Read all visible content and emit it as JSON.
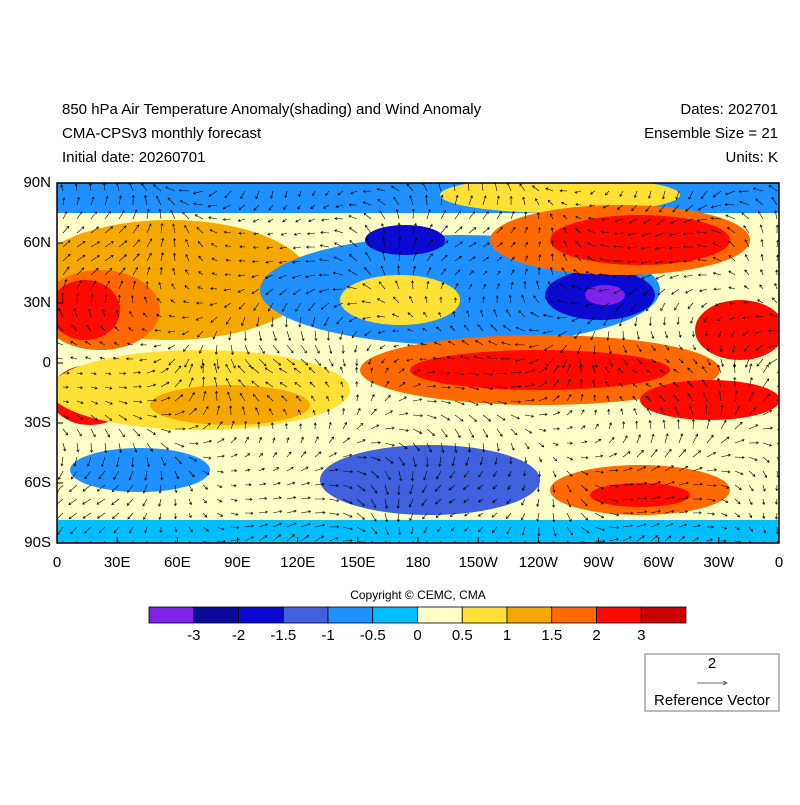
{
  "header": {
    "title": "850 hPa Air Temperature Anomaly(shading) and Wind Anomaly",
    "subtitle": "CMA-CPSv3 monthly forecast",
    "initial_date": "Initial date: 20260701",
    "dates": "Dates: 202701",
    "ensemble": "Ensemble Size = 21",
    "units": "Units: K"
  },
  "map": {
    "lat_labels": [
      "90N",
      "60N",
      "30N",
      "0",
      "30S",
      "60S",
      "90S"
    ],
    "lon_labels": [
      "0",
      "30E",
      "60E",
      "90E",
      "120E",
      "150E",
      "180",
      "150W",
      "120W",
      "90W",
      "60W",
      "30W",
      "0"
    ]
  },
  "copyright": "Copyright © CEMC, CMA",
  "colorbar": {
    "colors": [
      "#7d22e8",
      "#0a0a9a",
      "#0a0ad2",
      "#4060de",
      "#1e90ff",
      "#00bfff",
      "#ffffc8",
      "#ffe135",
      "#f5a800",
      "#ff6a00",
      "#ff0a00",
      "#c80000"
    ],
    "labels": [
      "-3",
      "-2",
      "-1.5",
      "-1",
      "-0.5",
      "0",
      "0.5",
      "1",
      "1.5",
      "2",
      "3"
    ]
  },
  "reference_vector": {
    "magnitude": "2",
    "label": "Reference Vector"
  }
}
